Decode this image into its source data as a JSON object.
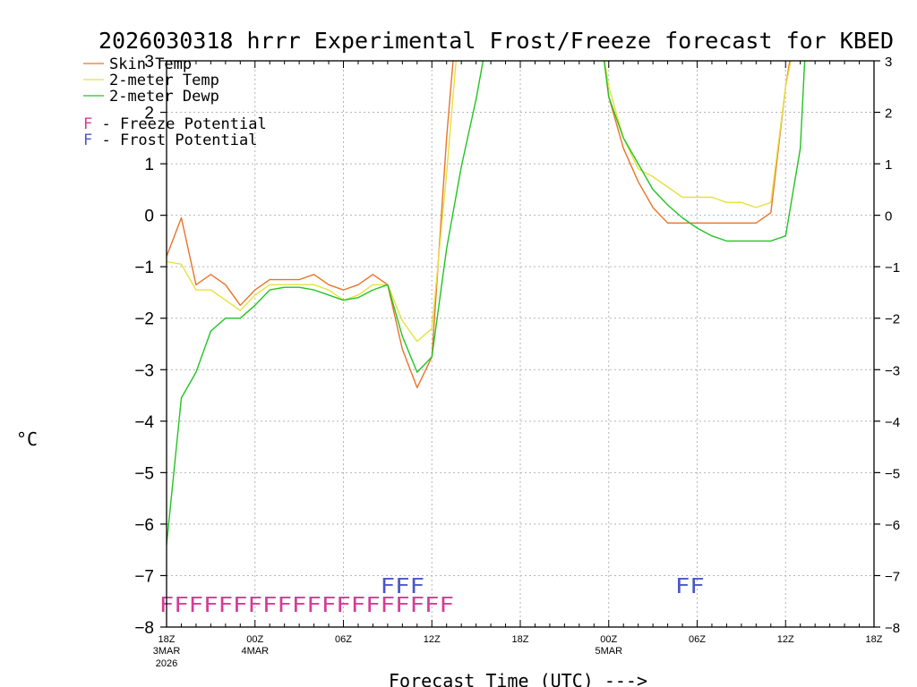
{
  "chart_data": {
    "type": "line",
    "title": "2026030318 hrrr Experimental Frost/Freeze forecast for KBED",
    "ylabel": "°C",
    "xlabel": "Forecast Time (UTC) --->",
    "ylim": [
      -8,
      3
    ],
    "xlim": [
      0,
      48
    ],
    "y_ticks": [
      -8,
      -7,
      -6,
      -5,
      -4,
      -3,
      -2,
      -1,
      0,
      1,
      2,
      3
    ],
    "x_ticks": [
      {
        "h": 0,
        "label": "18Z",
        "sub1": "3MAR",
        "sub2": "2026"
      },
      {
        "h": 6,
        "label": "00Z",
        "sub1": "4MAR",
        "sub2": ""
      },
      {
        "h": 12,
        "label": "06Z",
        "sub1": "",
        "sub2": ""
      },
      {
        "h": 18,
        "label": "12Z",
        "sub1": "",
        "sub2": ""
      },
      {
        "h": 24,
        "label": "18Z",
        "sub1": "",
        "sub2": ""
      },
      {
        "h": 30,
        "label": "00Z",
        "sub1": "5MAR",
        "sub2": ""
      },
      {
        "h": 36,
        "label": "06Z",
        "sub1": "",
        "sub2": ""
      },
      {
        "h": 42,
        "label": "12Z",
        "sub1": "",
        "sub2": ""
      },
      {
        "h": 48,
        "label": "18Z",
        "sub1": "",
        "sub2": ""
      }
    ],
    "grid": true,
    "legend_position": "top-left",
    "series": [
      {
        "name": "Skin Temp",
        "color": "#e8742a",
        "x": [
          0,
          1,
          2,
          3,
          4,
          5,
          6,
          7,
          8,
          9,
          10,
          11,
          12,
          13,
          14,
          15,
          16,
          17,
          18,
          19,
          19.5,
          20,
          29.6,
          30,
          31,
          32,
          33,
          34,
          35,
          36,
          37,
          38,
          39,
          40,
          41,
          42,
          42.4,
          42.7
        ],
        "values": [
          -0.8,
          -0.05,
          -1.35,
          -1.15,
          -1.35,
          -1.75,
          -1.45,
          -1.25,
          -1.25,
          -1.25,
          -1.15,
          -1.35,
          -1.45,
          -1.35,
          -1.15,
          -1.35,
          -2.6,
          -3.35,
          -2.75,
          1.5,
          3.2,
          3.2,
          3.2,
          2.3,
          1.3,
          0.65,
          0.15,
          -0.15,
          -0.15,
          -0.15,
          -0.15,
          -0.15,
          -0.15,
          -0.15,
          0.05,
          2.5,
          3.2,
          3.2
        ]
      },
      {
        "name": "2-meter Temp",
        "color": "#e6e040",
        "x": [
          0,
          1,
          2,
          3,
          4,
          5,
          6,
          7,
          8,
          9,
          10,
          11,
          12,
          13,
          14,
          15,
          16,
          17,
          18,
          19,
          19.7,
          20,
          29.6,
          30,
          31,
          32,
          33,
          34,
          35,
          36,
          37,
          38,
          39,
          40,
          41,
          42,
          42.5,
          42.8
        ],
        "values": [
          -0.9,
          -0.95,
          -1.45,
          -1.45,
          -1.65,
          -1.85,
          -1.55,
          -1.35,
          -1.35,
          -1.35,
          -1.35,
          -1.45,
          -1.65,
          -1.55,
          -1.35,
          -1.35,
          -2.05,
          -2.45,
          -2.2,
          0.8,
          3.2,
          3.2,
          3.2,
          2.5,
          1.5,
          0.9,
          0.75,
          0.55,
          0.35,
          0.35,
          0.35,
          0.25,
          0.25,
          0.15,
          0.25,
          2.5,
          3.2,
          3.2
        ]
      },
      {
        "name": "2-meter Dewp",
        "color": "#22c422",
        "x": [
          0,
          1,
          2,
          3,
          4,
          5,
          6,
          7,
          8,
          9,
          10,
          11,
          12,
          13,
          14,
          15,
          16,
          17,
          18,
          19,
          20,
          21,
          21.6,
          22,
          29.6,
          30,
          31,
          32,
          33,
          34,
          35,
          36,
          37,
          38,
          39,
          40,
          41,
          42,
          43,
          43.3,
          43.6
        ],
        "values": [
          -6.4,
          -3.55,
          -3.05,
          -2.25,
          -2.0,
          -2.0,
          -1.75,
          -1.45,
          -1.4,
          -1.4,
          -1.45,
          -1.55,
          -1.65,
          -1.6,
          -1.45,
          -1.35,
          -2.35,
          -3.05,
          -2.75,
          -0.65,
          0.95,
          2.25,
          3.2,
          3.2,
          3.2,
          2.3,
          1.5,
          1.0,
          0.5,
          0.2,
          -0.05,
          -0.25,
          -0.4,
          -0.5,
          -0.5,
          -0.5,
          -0.5,
          -0.4,
          1.3,
          3.0,
          3.2
        ]
      }
    ],
    "markers": [
      {
        "text": "FFFFFFFFFFFFFFFFFFFF",
        "start_h": -0.5,
        "end_h": 19.5,
        "row_y": -7.55,
        "color": "#d63b96"
      },
      {
        "text": "FFF",
        "start_h": 14.5,
        "end_h": 17.5,
        "row_y": -7.18,
        "color": "#4a57c8"
      },
      {
        "text": "FF",
        "start_h": 34.5,
        "end_h": 36.5,
        "row_y": -7.18,
        "color": "#4a57c8"
      }
    ]
  },
  "legend": {
    "skin": "Skin Temp",
    "temp": "2-meter Temp",
    "dewp": "2-meter Dewp",
    "f_letter": "F",
    "freeze": " - Freeze Potential",
    "frost": " - Frost Potential",
    "freeze_color": "#d63b96",
    "frost_color": "#4a57c8"
  }
}
